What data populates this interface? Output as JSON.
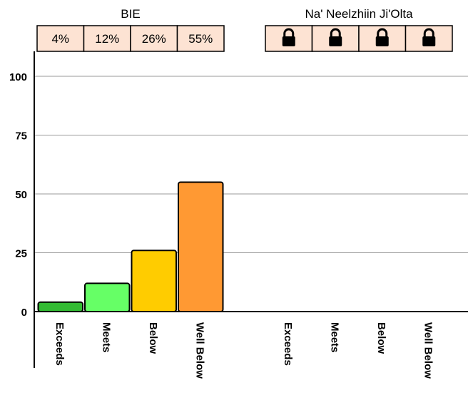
{
  "chart_data": {
    "type": "bar",
    "ylim": [
      0,
      100
    ],
    "yticks": [
      0,
      25,
      50,
      75,
      100
    ],
    "groups": [
      {
        "title": "BIE",
        "locked": false,
        "categories": [
          "Exceeds",
          "Meets",
          "Below",
          "Well Below"
        ],
        "values": [
          4,
          12,
          26,
          55
        ],
        "labels": [
          "4%",
          "12%",
          "26%",
          "55%"
        ]
      },
      {
        "title": "Na' Neelzhiin Ji'Olta",
        "locked": true,
        "lock_icon": "lock-icon",
        "categories": [
          "Exceeds",
          "Meets",
          "Below",
          "Well Below"
        ],
        "values": [],
        "labels": []
      }
    ],
    "colors": {
      "Exceeds": "#33bb33",
      "Meets": "#66ff66",
      "Below": "#ffcc00",
      "Well Below": "#ff9933",
      "label_box_fill": "#fde3d3",
      "gridline": "#999999",
      "axis": "#000000"
    },
    "grid": true,
    "legend": "none"
  }
}
